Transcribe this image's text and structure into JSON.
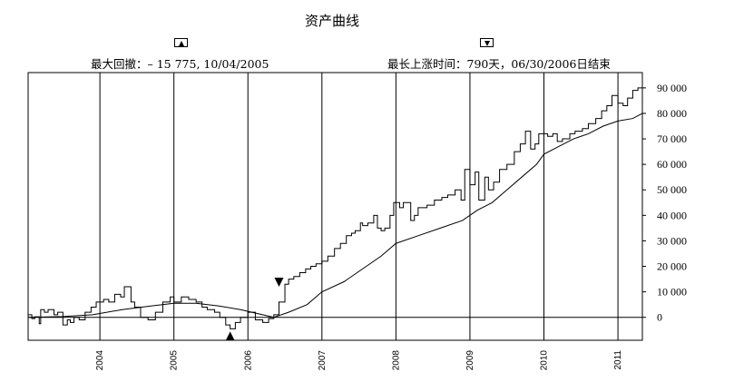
{
  "chart_data": {
    "type": "line",
    "title": "资产曲线",
    "annotations": {
      "max_drawdown": "最大回撤：– 15 775, 10/04/2005",
      "longest_run": "最长上涨时间：790天，06/30/2006日结束"
    },
    "x_ticks": [
      "2004",
      "2005",
      "2006",
      "2007",
      "2008",
      "2009",
      "2010",
      "2011"
    ],
    "y_ticks": [
      "0",
      "10 000",
      "20 000",
      "30 000",
      "40 000",
      "50 000",
      "60 000",
      "70 000",
      "80 000",
      "90 000"
    ],
    "ylim": [
      -9000,
      96000
    ],
    "xlim": [
      2003.03,
      2011.33
    ],
    "grid": "vertical-year-lines",
    "y_axis_side": "right",
    "series": [
      {
        "style": "equity-step",
        "points": [
          [
            2003.03,
            1000
          ],
          [
            2003.08,
            -500
          ],
          [
            2003.12,
            200
          ],
          [
            2003.18,
            -2500
          ],
          [
            2003.2,
            3000
          ],
          [
            2003.25,
            2000
          ],
          [
            2003.3,
            3000
          ],
          [
            2003.38,
            1000
          ],
          [
            2003.43,
            2000
          ],
          [
            2003.5,
            -3000
          ],
          [
            2003.56,
            -1000
          ],
          [
            2003.6,
            -2000
          ],
          [
            2003.65,
            0
          ],
          [
            2003.72,
            -1000
          ],
          [
            2003.8,
            2000
          ],
          [
            2003.88,
            4000
          ],
          [
            2003.95,
            6000
          ],
          [
            2004.05,
            7000
          ],
          [
            2004.12,
            6000
          ],
          [
            2004.2,
            9000
          ],
          [
            2004.28,
            8000
          ],
          [
            2004.33,
            12000
          ],
          [
            2004.42,
            6000
          ],
          [
            2004.47,
            4000
          ],
          [
            2004.55,
            0
          ],
          [
            2004.65,
            -1000
          ],
          [
            2004.75,
            2000
          ],
          [
            2004.85,
            6000
          ],
          [
            2004.95,
            8000
          ],
          [
            2005.0,
            6000
          ],
          [
            2005.1,
            8000
          ],
          [
            2005.2,
            7000
          ],
          [
            2005.3,
            6000
          ],
          [
            2005.38,
            4000
          ],
          [
            2005.45,
            3000
          ],
          [
            2005.55,
            2000
          ],
          [
            2005.62,
            0
          ],
          [
            2005.7,
            -3000
          ],
          [
            2005.76,
            -4500
          ],
          [
            2005.83,
            -2000
          ],
          [
            2005.9,
            0
          ],
          [
            2006.0,
            2000
          ],
          [
            2006.1,
            -1000
          ],
          [
            2006.2,
            -2000
          ],
          [
            2006.28,
            -500
          ],
          [
            2006.35,
            1000
          ],
          [
            2006.42,
            6000
          ],
          [
            2006.5,
            13000
          ],
          [
            2006.55,
            15000
          ],
          [
            2006.62,
            16000
          ],
          [
            2006.7,
            17500
          ],
          [
            2006.78,
            19000
          ],
          [
            2006.85,
            20000
          ],
          [
            2006.92,
            21000
          ],
          [
            2007.0,
            22000
          ],
          [
            2007.08,
            24000
          ],
          [
            2007.17,
            27000
          ],
          [
            2007.25,
            29000
          ],
          [
            2007.33,
            32000
          ],
          [
            2007.4,
            33000
          ],
          [
            2007.45,
            34000
          ],
          [
            2007.52,
            37000
          ],
          [
            2007.55,
            36000
          ],
          [
            2007.62,
            37000
          ],
          [
            2007.7,
            40000
          ],
          [
            2007.75,
            35000
          ],
          [
            2007.8,
            34000
          ],
          [
            2007.85,
            35000
          ],
          [
            2007.92,
            40000
          ],
          [
            2007.97,
            45000
          ],
          [
            2008.05,
            43000
          ],
          [
            2008.1,
            45000
          ],
          [
            2008.2,
            38000
          ],
          [
            2008.25,
            40000
          ],
          [
            2008.3,
            43000
          ],
          [
            2008.42,
            44000
          ],
          [
            2008.52,
            46000
          ],
          [
            2008.62,
            47000
          ],
          [
            2008.7,
            48000
          ],
          [
            2008.8,
            50000
          ],
          [
            2008.88,
            46000
          ],
          [
            2008.93,
            58000
          ],
          [
            2009.0,
            52000
          ],
          [
            2009.07,
            57000
          ],
          [
            2009.12,
            46000
          ],
          [
            2009.2,
            55000
          ],
          [
            2009.25,
            50000
          ],
          [
            2009.32,
            53000
          ],
          [
            2009.4,
            58000
          ],
          [
            2009.5,
            60000
          ],
          [
            2009.6,
            65000
          ],
          [
            2009.68,
            68000
          ],
          [
            2009.75,
            73000
          ],
          [
            2009.82,
            66000
          ],
          [
            2009.88,
            68000
          ],
          [
            2009.93,
            72000
          ],
          [
            2010.05,
            71000
          ],
          [
            2010.12,
            72000
          ],
          [
            2010.18,
            69000
          ],
          [
            2010.25,
            70000
          ],
          [
            2010.35,
            72000
          ],
          [
            2010.42,
            73000
          ],
          [
            2010.52,
            74000
          ],
          [
            2010.6,
            76000
          ],
          [
            2010.7,
            78000
          ],
          [
            2010.78,
            81000
          ],
          [
            2010.85,
            83000
          ],
          [
            2010.92,
            87000
          ],
          [
            2011.0,
            84000
          ],
          [
            2011.07,
            83000
          ],
          [
            2011.13,
            86000
          ],
          [
            2011.2,
            89000
          ],
          [
            2011.27,
            90000
          ],
          [
            2011.33,
            91000
          ]
        ]
      },
      {
        "style": "moving-average",
        "points": [
          [
            2003.03,
            0
          ],
          [
            2003.5,
            300
          ],
          [
            2003.9,
            1000
          ],
          [
            2004.3,
            3000
          ],
          [
            2004.7,
            4500
          ],
          [
            2005.0,
            5500
          ],
          [
            2005.3,
            5500
          ],
          [
            2005.6,
            4500
          ],
          [
            2005.9,
            3000
          ],
          [
            2006.2,
            1000
          ],
          [
            2006.35,
            0
          ],
          [
            2006.55,
            2000
          ],
          [
            2006.8,
            5000
          ],
          [
            2007.0,
            10000
          ],
          [
            2007.3,
            14000
          ],
          [
            2007.5,
            18000
          ],
          [
            2007.8,
            24000
          ],
          [
            2008.0,
            29000
          ],
          [
            2008.3,
            32000
          ],
          [
            2008.6,
            35000
          ],
          [
            2008.9,
            38000
          ],
          [
            2009.1,
            42000
          ],
          [
            2009.3,
            45000
          ],
          [
            2009.5,
            50000
          ],
          [
            2009.7,
            55000
          ],
          [
            2009.9,
            60000
          ],
          [
            2010.0,
            64000
          ],
          [
            2010.2,
            67000
          ],
          [
            2010.4,
            70000
          ],
          [
            2010.6,
            72000
          ],
          [
            2010.8,
            75000
          ],
          [
            2011.0,
            77000
          ],
          [
            2011.2,
            78000
          ],
          [
            2011.33,
            80000
          ]
        ]
      }
    ],
    "markers": [
      {
        "shape": "triangle-up",
        "x": 2005.76,
        "y": -4500
      },
      {
        "shape": "triangle-down",
        "x": 2006.42,
        "y": 12000
      }
    ]
  }
}
